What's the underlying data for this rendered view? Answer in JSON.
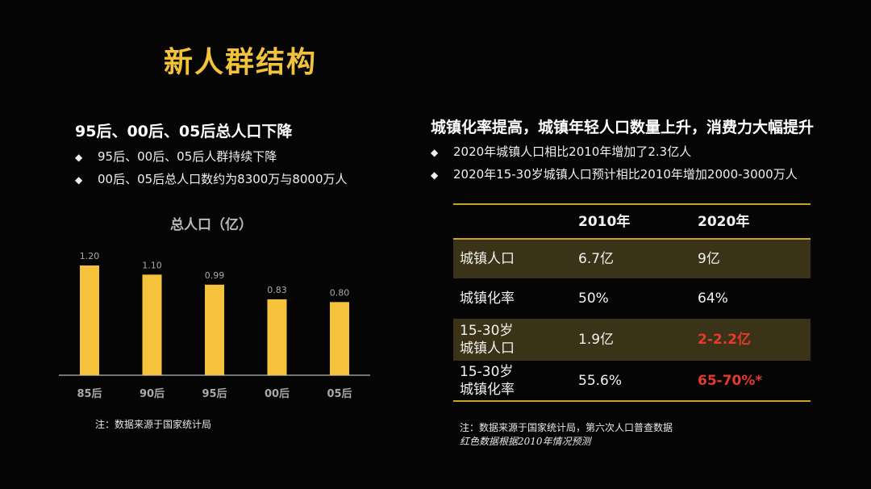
{
  "title": "新人群结构",
  "left": {
    "heading": "95后、00后、05后总人口下降",
    "bullets": [
      "95后、00后、05后人群持续下降",
      "00后、05后总人口数约为8300万与8000万人"
    ],
    "note": "注：数据来源于国家统计局"
  },
  "chart_data": {
    "type": "bar",
    "title": "总人口（亿）",
    "categories": [
      "85后",
      "90后",
      "95后",
      "00后",
      "05后"
    ],
    "values": [
      1.2,
      1.1,
      0.99,
      0.83,
      0.8
    ],
    "value_labels": [
      "1.20",
      "1.10",
      "0.99",
      "0.83",
      "0.80"
    ],
    "ylim": [
      0,
      1.2
    ],
    "grid": false,
    "bar_color": "#f5c33b"
  },
  "right": {
    "heading": "城镇化率提高，城镇年轻人口数量上升，消费力大幅提升",
    "bullets": [
      "2020年城镇人口相比2010年增加了2.3亿人",
      "2020年15-30岁城镇人口预计相比2010年增加2000-3000万人"
    ],
    "table": {
      "headers": [
        "",
        "2010年",
        "2020年"
      ],
      "rows": [
        {
          "label1": "城镇人口",
          "label2": "",
          "v2010": "6.7亿",
          "v2020": "9亿"
        },
        {
          "label1": "城镇化率",
          "label2": "",
          "v2010": "50%",
          "v2020": "64%"
        },
        {
          "label1": "15-30岁",
          "label2": "城镇人口",
          "v2010": "1.9亿",
          "v2020": "2-2.2亿"
        },
        {
          "label1": "15-30岁",
          "label2": "城镇化率",
          "v2010": "55.6%",
          "v2020": "65-70%*"
        }
      ]
    },
    "note1": "注：数据来源于国家统计局，第六次人口普查数据",
    "note2": "红色数据根据2010年情况预测"
  },
  "colors": {
    "accent": "#f2c23a",
    "highlight_red": "#e53a2c",
    "row_shade": "#3b3317",
    "rule": "#c9a227"
  }
}
